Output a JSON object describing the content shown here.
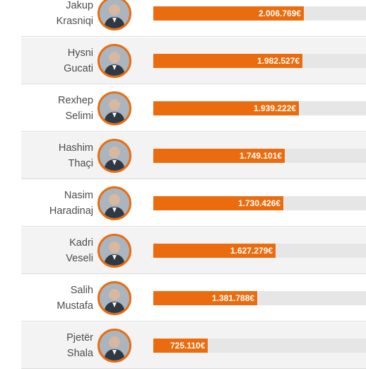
{
  "colors": {
    "bar": "#eb6c0e",
    "track": "#e6e6e6",
    "alt_row": "#f3f3f3",
    "avatar_ring": "#eb6c0e"
  },
  "scale_max": 2830000,
  "rows": [
    {
      "first": "Jakup",
      "last": "Krasniqi",
      "value": 2006769,
      "label": "2.006.769€",
      "avatar": "portrait-icon"
    },
    {
      "first": "Hysni",
      "last": "Gucati",
      "value": 1982527,
      "label": "1.982.527€",
      "avatar": "portrait-icon"
    },
    {
      "first": "Rexhep",
      "last": "Selimi",
      "value": 1939222,
      "label": "1.939.222€",
      "avatar": "portrait-icon"
    },
    {
      "first": "Hashim",
      "last": "Thaçi",
      "value": 1749101,
      "label": "1.749.101€",
      "avatar": "portrait-icon"
    },
    {
      "first": "Nasim",
      "last": "Haradinaj",
      "value": 1730426,
      "label": "1.730.426€",
      "avatar": "portrait-icon"
    },
    {
      "first": "Kadri",
      "last": "Veseli",
      "value": 1627279,
      "label": "1.627.279€",
      "avatar": "portrait-icon"
    },
    {
      "first": "Salih",
      "last": "Mustafa",
      "value": 1381788,
      "label": "1.381.788€",
      "avatar": "portrait-icon"
    },
    {
      "first": "Pjetër",
      "last": "Shala",
      "value": 725110,
      "label": "725.110€",
      "avatar": "portrait-icon"
    }
  ]
}
